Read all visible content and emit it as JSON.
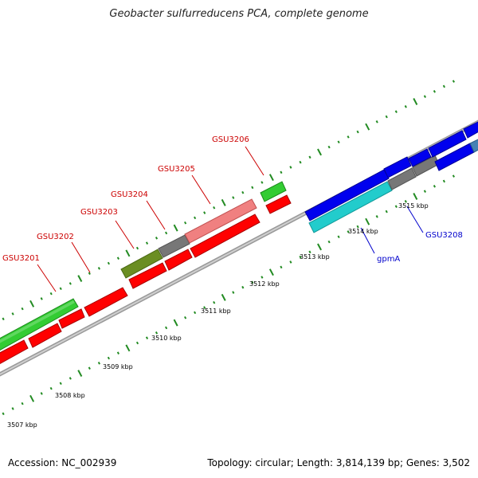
{
  "title": "Geobacter sulfurreducens PCA, complete genome",
  "accession": "Accession: NC_002939",
  "stats": "Topology: circular; Length: 3,814,139 bp; Genes: 3,502",
  "kbp_labels": [
    "3507 kbp",
    "3508 kbp",
    "3509 kbp",
    "3510 kbp",
    "3511 kbp",
    "3512 kbp",
    "3513 kbp",
    "3514 kbp",
    "3515 kbp"
  ],
  "gene_labels": [
    {
      "name": "GSU3201",
      "color": "red"
    },
    {
      "name": "GSU3202",
      "color": "red"
    },
    {
      "name": "GSU3203",
      "color": "red"
    },
    {
      "name": "GSU3204",
      "color": "red"
    },
    {
      "name": "GSU3205",
      "color": "red"
    },
    {
      "name": "GSU3206",
      "color": "red"
    },
    {
      "name": "gpmA",
      "color": "blue"
    },
    {
      "name": "GSU3208",
      "color": "blue"
    }
  ],
  "colors": {
    "red": "#ff0000",
    "green": "#33cc33",
    "olive": "#6b8e23",
    "gray": "#777777",
    "pink": "#f08080",
    "blue": "#0000ee",
    "cyan": "#22cccc",
    "tick_green": "#228b22",
    "backbone": "#888888"
  }
}
